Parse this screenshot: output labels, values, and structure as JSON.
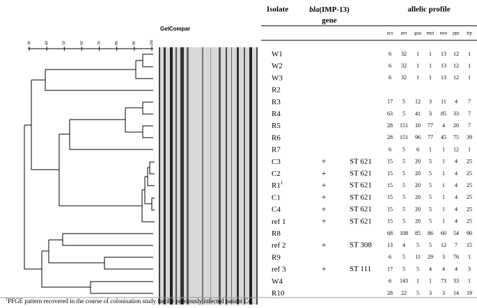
{
  "header": {
    "gel_label": "GelCompar",
    "scale_ticks": [
      "30",
      "40",
      "50",
      "60",
      "70",
      "80",
      "90",
      "100"
    ],
    "isolate": "Isolate",
    "gene_italic": "bla",
    "gene_rest": "(IMP-13)",
    "gene_line2": "gene",
    "allelic": "allelic profile",
    "loci": [
      "acs",
      "aro",
      "gua",
      "mut",
      "nuo",
      "pps",
      "trp"
    ]
  },
  "rows": [
    {
      "isolate": "W1",
      "profile": [
        6,
        32,
        1,
        1,
        13,
        12,
        1
      ]
    },
    {
      "isolate": "W2",
      "profile": [
        6,
        32,
        1,
        1,
        13,
        12,
        1
      ]
    },
    {
      "isolate": "W3",
      "profile": [
        6,
        32,
        1,
        1,
        13,
        12,
        1
      ]
    },
    {
      "isolate": "R2"
    },
    {
      "isolate": "R3",
      "profile": [
        17,
        5,
        12,
        3,
        11,
        4,
        7
      ]
    },
    {
      "isolate": "R4",
      "profile": [
        63,
        5,
        41,
        3,
        85,
        33,
        7
      ]
    },
    {
      "isolate": "R5",
      "profile": [
        28,
        151,
        10,
        77,
        4,
        20,
        7
      ]
    },
    {
      "isolate": "R6",
      "profile": [
        28,
        151,
        96,
        77,
        45,
        75,
        39
      ]
    },
    {
      "isolate": "R7",
      "profile": [
        6,
        5,
        6,
        1,
        1,
        12,
        1
      ]
    },
    {
      "isolate": "C3",
      "gene": "+",
      "st": "ST 621",
      "profile": [
        15,
        5,
        20,
        5,
        1,
        4,
        25
      ]
    },
    {
      "isolate": "C2",
      "gene": "+",
      "st": "ST 621",
      "profile": [
        15,
        5,
        20,
        5,
        1,
        4,
        25
      ]
    },
    {
      "isolate": "R1",
      "mark": "1",
      "gene": "+",
      "st": "ST 621",
      "profile": [
        15,
        5,
        20,
        5,
        1,
        4,
        25
      ]
    },
    {
      "isolate": "C1",
      "gene": "+",
      "st": "ST 621",
      "profile": [
        15,
        5,
        20,
        5,
        1,
        4,
        25
      ]
    },
    {
      "isolate": "C4",
      "gene": "+",
      "st": "ST 621",
      "profile": [
        15,
        5,
        20,
        5,
        1,
        4,
        25
      ]
    },
    {
      "isolate": "ref 1",
      "gene": "+",
      "st": "ST 621",
      "profile": [
        15,
        5,
        20,
        5,
        1,
        4,
        25
      ]
    },
    {
      "isolate": "R8",
      "profile": [
        68,
        108,
        85,
        86,
        60,
        54,
        90
      ]
    },
    {
      "isolate": "ref 2",
      "gene": "+",
      "st": "ST 308",
      "profile": [
        13,
        4,
        5,
        5,
        12,
        7,
        15
      ]
    },
    {
      "isolate": "R9",
      "profile": [
        6,
        5,
        11,
        29,
        3,
        76,
        1
      ]
    },
    {
      "isolate": "ref 3",
      "gene": "+",
      "st": "ST 111",
      "profile": [
        17,
        5,
        5,
        4,
        4,
        4,
        3
      ]
    },
    {
      "isolate": "W4",
      "profile": [
        6,
        143,
        1,
        1,
        73,
        33,
        1
      ]
    },
    {
      "isolate": "R10",
      "profile": [
        28,
        22,
        5,
        3,
        3,
        14,
        19
      ]
    }
  ],
  "footnote": {
    "mark": "1",
    "text": "PFGE pattern recovered in the course of colonisation study for the previously infected patient C4."
  }
}
